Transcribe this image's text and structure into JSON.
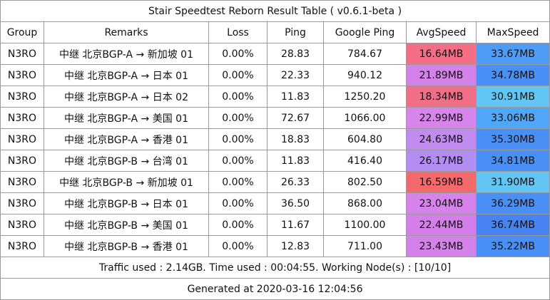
{
  "title": "Stair Speedtest Reborn Result Table ( v0.6.1-beta )",
  "columns": [
    "Group",
    "Remarks",
    "Loss",
    "Ping",
    "Google Ping",
    "AvgSpeed",
    "MaxSpeed"
  ],
  "rows": [
    {
      "group": "N3RO",
      "remarks": "中继 北京BGP-A → 新加坡 01",
      "loss": "0.00%",
      "ping": "28.83",
      "google_ping": "784.67",
      "avg_speed": "16.64MB",
      "max_speed": "33.67MB",
      "avg_color": "#f46f86",
      "max_color": "#4f9cf7"
    },
    {
      "group": "N3RO",
      "remarks": "中继 北京BGP-A → 日本 01",
      "loss": "0.00%",
      "ping": "22.33",
      "google_ping": "940.12",
      "avg_speed": "21.89MB",
      "max_speed": "34.78MB",
      "avg_color": "#d382e9",
      "max_color": "#4a8ff5"
    },
    {
      "group": "N3RO",
      "remarks": "中继 北京BGP-A → 日本 02",
      "loss": "0.00%",
      "ping": "11.83",
      "google_ping": "1250.20",
      "avg_speed": "18.34MB",
      "max_speed": "30.91MB",
      "avg_color": "#f06e86",
      "max_color": "#62c6f5"
    },
    {
      "group": "N3RO",
      "remarks": "中继 北京BGP-A → 美国 01",
      "loss": "0.00%",
      "ping": "72.67",
      "google_ping": "1066.00",
      "avg_speed": "22.99MB",
      "max_speed": "33.06MB",
      "avg_color": "#d885eb",
      "max_color": "#50a7f7"
    },
    {
      "group": "N3RO",
      "remarks": "中继 北京BGP-A → 香港 01",
      "loss": "0.00%",
      "ping": "18.83",
      "google_ping": "604.80",
      "avg_speed": "24.63MB",
      "max_speed": "35.30MB",
      "avg_color": "#c28bf0",
      "max_color": "#4a8ff5"
    },
    {
      "group": "N3RO",
      "remarks": "中继 北京BGP-B → 台湾 01",
      "loss": "0.00%",
      "ping": "11.83",
      "google_ping": "416.40",
      "avg_speed": "26.17MB",
      "max_speed": "34.81MB",
      "avg_color": "#b48df3",
      "max_color": "#4a8ff5"
    },
    {
      "group": "N3RO",
      "remarks": "中继 北京BGP-B → 新加坡 01",
      "loss": "0.00%",
      "ping": "26.33",
      "google_ping": "802.50",
      "avg_speed": "16.59MB",
      "max_speed": "31.90MB",
      "avg_color": "#f46a6c",
      "max_color": "#62c6f5"
    },
    {
      "group": "N3RO",
      "remarks": "中继 北京BGP-B → 日本 01",
      "loss": "0.00%",
      "ping": "36.50",
      "google_ping": "868.00",
      "avg_speed": "23.04MB",
      "max_speed": "36.29MB",
      "avg_color": "#d583ea",
      "max_color": "#4a8ff5"
    },
    {
      "group": "N3RO",
      "remarks": "中继 北京BGP-B → 美国 01",
      "loss": "0.00%",
      "ping": "11.67",
      "google_ping": "1100.00",
      "avg_speed": "22.44MB",
      "max_speed": "36.74MB",
      "avg_color": "#d37ee9",
      "max_color": "#4883f2"
    },
    {
      "group": "N3RO",
      "remarks": "中继 北京BGP-B → 香港 01",
      "loss": "0.00%",
      "ping": "12.83",
      "google_ping": "711.00",
      "avg_speed": "23.43MB",
      "max_speed": "35.22MB",
      "avg_color": "#d382ea",
      "max_color": "#4a8ff5"
    }
  ],
  "footer": {
    "traffic": "Traffic used : 2.14GB. Time used : 00:04:55. Working Node(s) : [10/10]",
    "generated": "Generated at 2020-03-16 12:04:56"
  }
}
